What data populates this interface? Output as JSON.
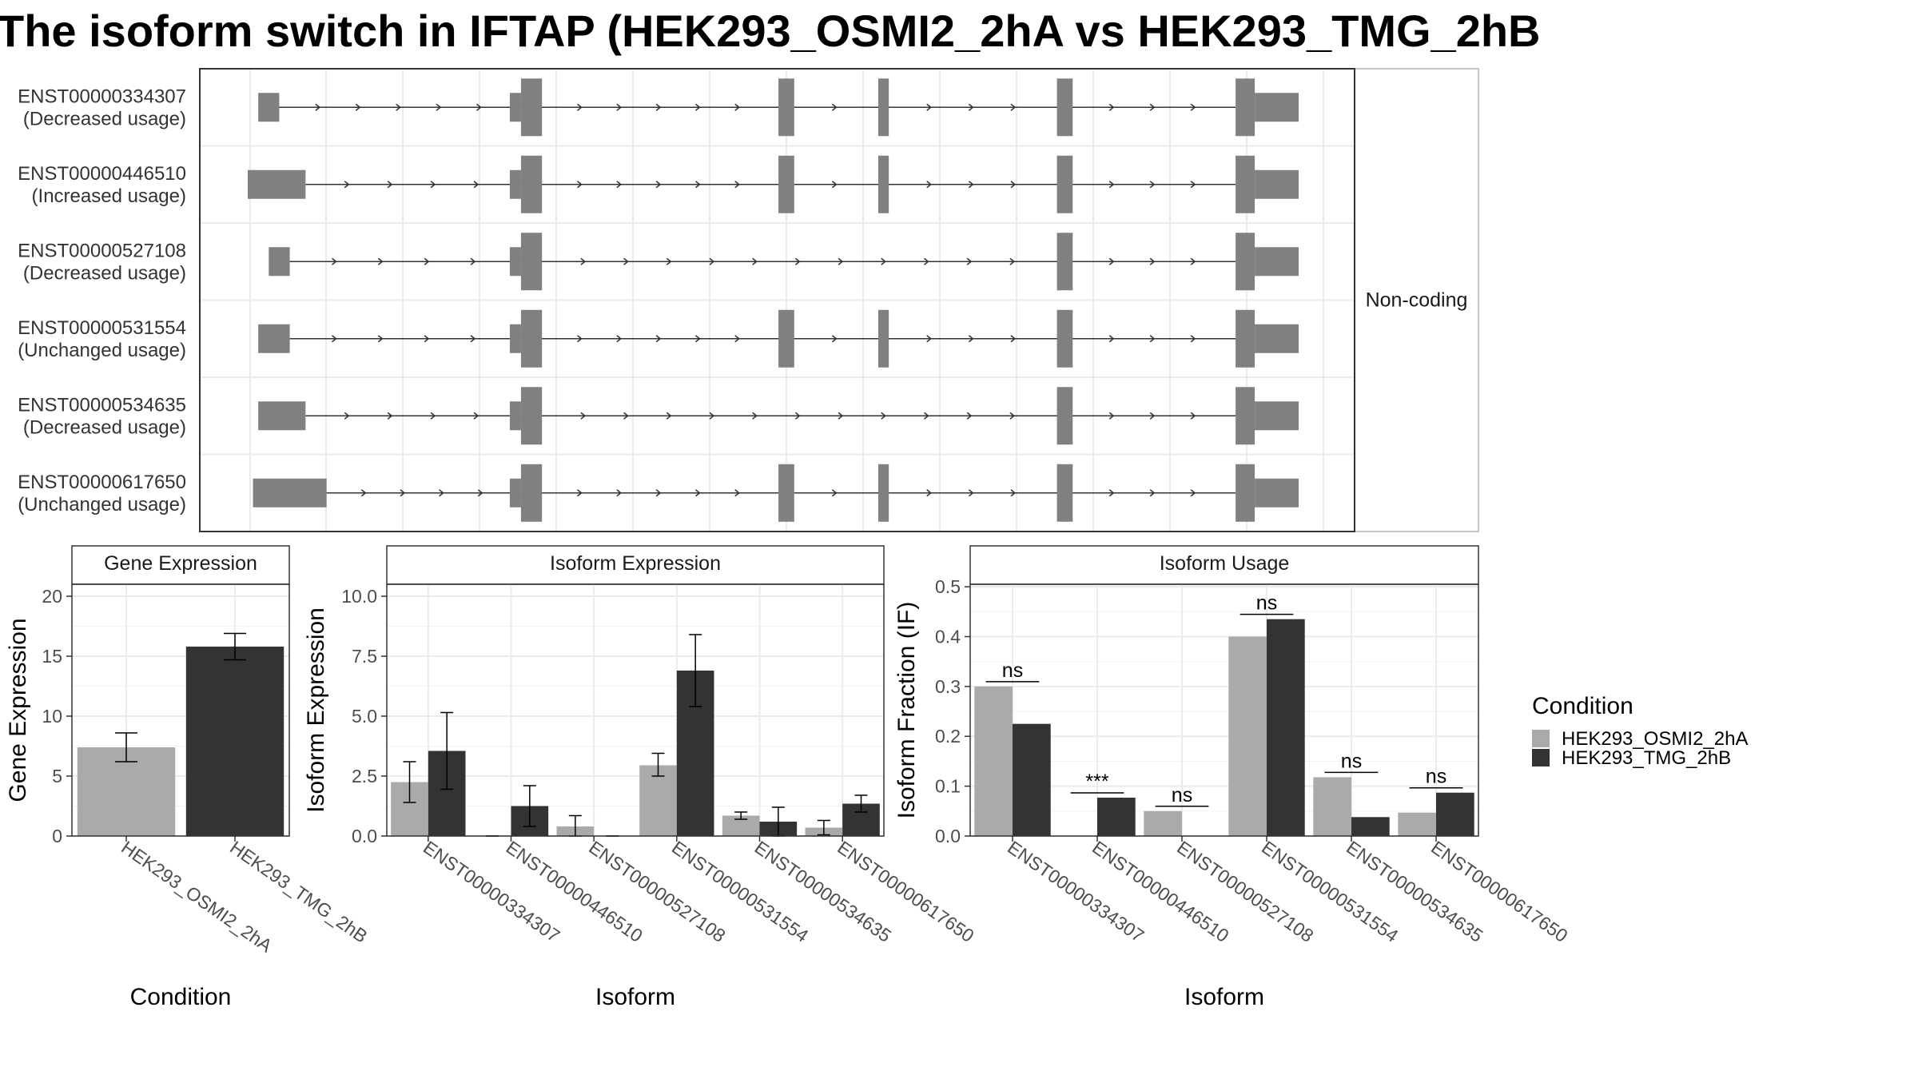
{
  "title": "The isoform switch in IFTAP (HEK293_OSMI2_2hA vs HEK293_TMG_2hB",
  "colors": {
    "cond_a": "#aaaaaa",
    "cond_b": "#333333",
    "exon": "#808080"
  },
  "transcripts": {
    "coding_label": "Non-coding",
    "items": [
      {
        "id": "ENST00000334307",
        "usage": "(Decreased usage)",
        "exons": [
          [
            0.01,
            0.03
          ],
          [
            0.26,
            0.28
          ],
          [
            0.505,
            0.52
          ],
          [
            0.6,
            0.61
          ],
          [
            0.77,
            0.785
          ],
          [
            0.94,
            1.0
          ]
        ]
      },
      {
        "id": "ENST00000446510",
        "usage": "(Increased usage)",
        "exons": [
          [
            0.0,
            0.055
          ],
          [
            0.26,
            0.28
          ],
          [
            0.505,
            0.52
          ],
          [
            0.6,
            0.61
          ],
          [
            0.77,
            0.785
          ],
          [
            0.94,
            1.0
          ]
        ]
      },
      {
        "id": "ENST00000527108",
        "usage": "(Decreased usage)",
        "exons": [
          [
            0.02,
            0.04
          ],
          [
            0.26,
            0.28
          ],
          [
            0.77,
            0.785
          ],
          [
            0.94,
            1.0
          ]
        ]
      },
      {
        "id": "ENST00000531554",
        "usage": "(Unchanged usage)",
        "exons": [
          [
            0.01,
            0.04
          ],
          [
            0.26,
            0.28
          ],
          [
            0.505,
            0.52
          ],
          [
            0.6,
            0.61
          ],
          [
            0.77,
            0.785
          ],
          [
            0.94,
            1.0
          ]
        ]
      },
      {
        "id": "ENST00000534635",
        "usage": "(Decreased usage)",
        "exons": [
          [
            0.01,
            0.055
          ],
          [
            0.26,
            0.28
          ],
          [
            0.77,
            0.785
          ],
          [
            0.94,
            1.0
          ]
        ]
      },
      {
        "id": "ENST00000617650",
        "usage": "(Unchanged usage)",
        "exons": [
          [
            0.005,
            0.075
          ],
          [
            0.26,
            0.28
          ],
          [
            0.505,
            0.52
          ],
          [
            0.6,
            0.61
          ],
          [
            0.77,
            0.785
          ],
          [
            0.94,
            1.0
          ]
        ]
      }
    ]
  },
  "chart_data": [
    {
      "type": "bar",
      "title": "Gene Expression",
      "xlabel": "Condition",
      "ylabel": "Gene Expression",
      "ylim": [
        0,
        21
      ],
      "yticks": [
        "0",
        "5",
        "10",
        "15",
        "20"
      ],
      "categories": [
        "HEK293_OSMI2_2hA",
        "HEK293_TMG_2hB"
      ],
      "values": [
        7.4,
        15.8
      ],
      "error": [
        [
          6.2,
          8.6
        ],
        [
          14.7,
          16.9
        ]
      ]
    },
    {
      "type": "bar",
      "title": "Isoform Expression",
      "xlabel": "Isoform",
      "ylabel": "Isoform Expression",
      "ylim": [
        0,
        10.5
      ],
      "yticks": [
        "0.0",
        "2.5",
        "5.0",
        "7.5",
        "10.0"
      ],
      "categories": [
        "ENST00000334307",
        "ENST00000446510",
        "ENST00000527108",
        "ENST00000531554",
        "ENST00000534635",
        "ENST00000617650"
      ],
      "series": [
        {
          "name": "HEK293_OSMI2_2hA",
          "values": [
            2.25,
            0.0,
            0.4,
            2.95,
            0.85,
            0.35
          ],
          "error": [
            [
              1.4,
              3.1
            ],
            [
              0.0,
              0.0
            ],
            [
              0.0,
              0.85
            ],
            [
              2.5,
              3.45
            ],
            [
              0.7,
              1.0
            ],
            [
              0.05,
              0.65
            ]
          ]
        },
        {
          "name": "HEK293_TMG_2hB",
          "values": [
            3.55,
            1.25,
            0.0,
            6.9,
            0.6,
            1.35
          ],
          "error": [
            [
              1.95,
              5.15
            ],
            [
              0.4,
              2.1
            ],
            [
              0.0,
              0.0
            ],
            [
              5.4,
              8.4
            ],
            [
              0.0,
              1.2
            ],
            [
              1.0,
              1.7
            ]
          ]
        }
      ]
    },
    {
      "type": "bar",
      "title": "Isoform Usage",
      "xlabel": "Isoform",
      "ylabel": "Isoform Fraction (IF)",
      "ylim": [
        0,
        0.505
      ],
      "yticks": [
        "0.0",
        "0.1",
        "0.2",
        "0.3",
        "0.4",
        "0.5"
      ],
      "categories": [
        "ENST00000334307",
        "ENST00000446510",
        "ENST00000527108",
        "ENST00000531554",
        "ENST00000534635",
        "ENST00000617650"
      ],
      "series": [
        {
          "name": "HEK293_OSMI2_2hA",
          "values": [
            0.3,
            0.0,
            0.05,
            0.4,
            0.118,
            0.047
          ]
        },
        {
          "name": "HEK293_TMG_2hB",
          "values": [
            0.225,
            0.077,
            0.0,
            0.435,
            0.038,
            0.087
          ]
        }
      ],
      "significance": [
        "ns",
        "***",
        "ns",
        "ns",
        "ns",
        "ns"
      ]
    }
  ],
  "legend": {
    "title": "Condition",
    "entries": [
      "HEK293_OSMI2_2hA",
      "HEK293_TMG_2hB"
    ]
  }
}
